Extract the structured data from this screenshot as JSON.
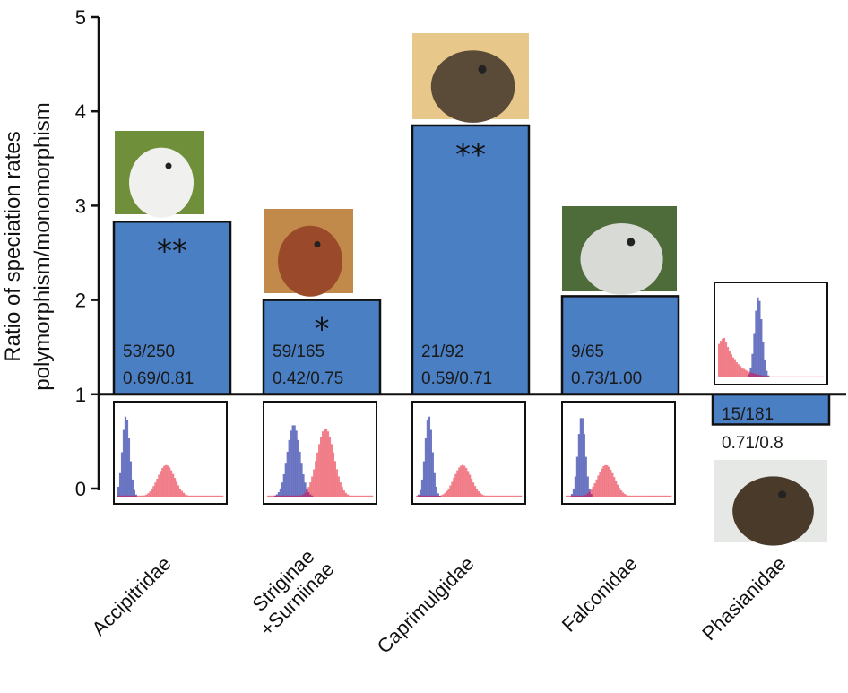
{
  "chart_data": {
    "type": "bar",
    "title": "",
    "xlabel": "",
    "ylabel": [
      "Ratio of speciation rates",
      "polymorphism/monomorphism"
    ],
    "ylim": [
      0,
      5
    ],
    "baseline": 1,
    "yticks": [
      "0",
      "1",
      "2",
      "3",
      "4",
      "5"
    ],
    "categories": [
      [
        "Accipitridae"
      ],
      [
        "Striginae",
        "+Surniinae"
      ],
      [
        "Caprimulgidae"
      ],
      [
        "Falconidae"
      ],
      [
        "Phasianidae"
      ]
    ],
    "values": [
      2.83,
      2.0,
      3.85,
      2.04,
      0.68
    ],
    "significance": [
      "**",
      "*",
      "**",
      "",
      ""
    ],
    "counts": [
      "53/250",
      "59/165",
      "21/92",
      "9/65",
      "15/181"
    ],
    "proportions": [
      "0.69/0.81",
      "0.42/0.75",
      "0.59/0.71",
      "0.73/1.00",
      "0.71/0.8"
    ],
    "photos": [
      "kite-photo",
      "screech-owl-photo",
      "nightjar-photo",
      "gyrfalcon-photo",
      "grouse-photo"
    ],
    "insets": [
      {
        "blue_peak": 0.08,
        "red_peak": 0.46
      },
      {
        "blue_peak": 0.25,
        "red_peak": 0.55
      },
      {
        "blue_peak": 0.12,
        "red_peak": 0.44
      },
      {
        "blue_peak": 0.15,
        "red_peak": 0.38
      },
      {
        "blue_peak": 0.38,
        "red_peak": 0.06
      }
    ],
    "colors": {
      "bar": "#4a7fc4",
      "bar_stroke": "#111111",
      "blue_dist": "#5560b8",
      "red_dist": "#ef6b78",
      "overlap": "#b4347a"
    }
  }
}
